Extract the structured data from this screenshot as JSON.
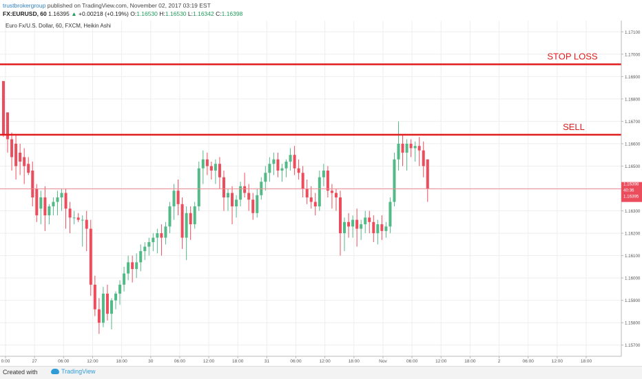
{
  "header": {
    "author": "trustbrokergroup",
    "published": "published on TradingView.com, November 02, 2017 03:19 EST",
    "symbol": "FX:EURUSD, 60",
    "last": "1.16395",
    "change": "+0.00218 (+0.19%)",
    "o_label": "O:",
    "o_value": "1.16530",
    "h_label": "H:",
    "h_value": "1.16530",
    "l_label": "L:",
    "l_value": "1.16342",
    "c_label": "C:",
    "c_value": "1.16398"
  },
  "footer": {
    "created_with": "Created with",
    "brand": "TradingView"
  },
  "chart_data": {
    "type": "candlestick",
    "title": "Euro Fx/U.S. Dollar, 60, FXCM, Heikin Ashi",
    "ylim": [
      1.1565,
      1.1715
    ],
    "y_ticks": [
      "1.17100",
      "1.17000",
      "1.16900",
      "1.16800",
      "1.16700",
      "1.16600",
      "1.16500",
      "1.16400",
      "1.16300",
      "1.16200",
      "1.16100",
      "1.16000",
      "1.15900",
      "1.15800",
      "1.15700"
    ],
    "x_ticks": [
      "0:00",
      "27",
      "06:00",
      "12:00",
      "18:00",
      "30",
      "06:00",
      "12:00",
      "18:00",
      "31",
      "06:00",
      "12:00",
      "18:00",
      "Nov",
      "06:00",
      "12:00",
      "18:00",
      "2",
      "06:00",
      "12:00",
      "18:00"
    ],
    "price_labels": {
      "last": "1.16398",
      "countdown": "40:36",
      "bid": "1.16395"
    },
    "horizontal_lines": [
      {
        "label": "STOP LOSS",
        "value": 1.16955
      },
      {
        "label": "SELL",
        "value": 1.1664
      }
    ],
    "colors": {
      "up": "#53b987",
      "down": "#eb4d5c",
      "level_line": "#e01b1b",
      "price_line": "#f08a93"
    },
    "candles": [
      [
        1.1688,
        1.1688,
        1.1663,
        1.1664
      ],
      [
        1.1674,
        1.1674,
        1.1656,
        1.1662
      ],
      [
        1.1662,
        1.1665,
        1.1648,
        1.1654
      ],
      [
        1.166,
        1.1664,
        1.1644,
        1.165
      ],
      [
        1.1656,
        1.166,
        1.1646,
        1.1652
      ],
      [
        1.1654,
        1.1658,
        1.1642,
        1.165
      ],
      [
        1.1651,
        1.1654,
        1.1646,
        1.1647
      ],
      [
        1.1648,
        1.1652,
        1.1632,
        1.1636
      ],
      [
        1.164,
        1.1642,
        1.1625,
        1.1628
      ],
      [
        1.1631,
        1.1639,
        1.1624,
        1.1636
      ],
      [
        1.1636,
        1.1641,
        1.1621,
        1.1628
      ],
      [
        1.1628,
        1.1633,
        1.1624,
        1.1632
      ],
      [
        1.1632,
        1.1636,
        1.1628,
        1.1634
      ],
      [
        1.1634,
        1.1639,
        1.1628,
        1.1636
      ],
      [
        1.1636,
        1.164,
        1.163,
        1.1638
      ],
      [
        1.1638,
        1.164,
        1.1622,
        1.1631
      ],
      [
        1.1631,
        1.1634,
        1.162,
        1.1627
      ],
      [
        1.1627,
        1.163,
        1.1624,
        1.1627
      ],
      [
        1.1627,
        1.1629,
        1.1625,
        1.1626
      ],
      [
        1.1626,
        1.1628,
        1.1614,
        1.1626
      ],
      [
        1.1626,
        1.163,
        1.1612,
        1.1622
      ],
      [
        1.1622,
        1.1626,
        1.1592,
        1.1597
      ],
      [
        1.1597,
        1.1601,
        1.1583,
        1.1586
      ],
      [
        1.1586,
        1.1591,
        1.1575,
        1.158
      ],
      [
        1.158,
        1.1596,
        1.1578,
        1.1593
      ],
      [
        1.1593,
        1.1597,
        1.1581,
        1.1584
      ],
      [
        1.1584,
        1.1591,
        1.1577,
        1.159
      ],
      [
        1.159,
        1.1594,
        1.1586,
        1.1593
      ],
      [
        1.1593,
        1.1599,
        1.1588,
        1.1597
      ],
      [
        1.1597,
        1.1605,
        1.1594,
        1.1602
      ],
      [
        1.1602,
        1.161,
        1.1599,
        1.1607
      ],
      [
        1.1607,
        1.161,
        1.1598,
        1.1604
      ],
      [
        1.1604,
        1.1611,
        1.16,
        1.1607
      ],
      [
        1.1607,
        1.1615,
        1.1603,
        1.1612
      ],
      [
        1.1612,
        1.1616,
        1.1608,
        1.1614
      ],
      [
        1.1614,
        1.1618,
        1.161,
        1.1616
      ],
      [
        1.1616,
        1.162,
        1.1612,
        1.1618
      ],
      [
        1.1618,
        1.1622,
        1.1611,
        1.162
      ],
      [
        1.162,
        1.1624,
        1.161,
        1.1618
      ],
      [
        1.1618,
        1.1625,
        1.1615,
        1.1623
      ],
      [
        1.1623,
        1.1634,
        1.162,
        1.1632
      ],
      [
        1.1632,
        1.1642,
        1.1626,
        1.1639
      ],
      [
        1.1639,
        1.1644,
        1.1628,
        1.1633
      ],
      [
        1.1633,
        1.1636,
        1.1613,
        1.1618
      ],
      [
        1.1618,
        1.1632,
        1.1608,
        1.1629
      ],
      [
        1.1629,
        1.1632,
        1.1617,
        1.1624
      ],
      [
        1.1624,
        1.1634,
        1.1622,
        1.1632
      ],
      [
        1.1632,
        1.1652,
        1.163,
        1.1649
      ],
      [
        1.1649,
        1.1657,
        1.1642,
        1.1653
      ],
      [
        1.1653,
        1.1656,
        1.1646,
        1.165
      ],
      [
        1.165,
        1.1652,
        1.1644,
        1.1648
      ],
      [
        1.1648,
        1.1653,
        1.1642,
        1.1651
      ],
      [
        1.1651,
        1.1654,
        1.164,
        1.1645
      ],
      [
        1.1645,
        1.1648,
        1.163,
        1.1636
      ],
      [
        1.1636,
        1.164,
        1.163,
        1.1638
      ],
      [
        1.1638,
        1.1641,
        1.1624,
        1.1632
      ],
      [
        1.1632,
        1.1637,
        1.1627,
        1.1635
      ],
      [
        1.1635,
        1.1643,
        1.1632,
        1.1641
      ],
      [
        1.1641,
        1.1647,
        1.1636,
        1.1638
      ],
      [
        1.1638,
        1.1642,
        1.163,
        1.1635
      ],
      [
        1.1635,
        1.1638,
        1.1626,
        1.1629
      ],
      [
        1.1629,
        1.164,
        1.1627,
        1.1637
      ],
      [
        1.1637,
        1.1645,
        1.1635,
        1.1643
      ],
      [
        1.1643,
        1.165,
        1.1639,
        1.1647
      ],
      [
        1.1647,
        1.1654,
        1.1643,
        1.1651
      ],
      [
        1.1651,
        1.1656,
        1.1646,
        1.1653
      ],
      [
        1.1653,
        1.1656,
        1.1645,
        1.1648
      ],
      [
        1.1648,
        1.1651,
        1.1643,
        1.1649
      ],
      [
        1.1649,
        1.1653,
        1.1645,
        1.1652
      ],
      [
        1.1652,
        1.1658,
        1.1648,
        1.1655
      ],
      [
        1.1655,
        1.1659,
        1.1646,
        1.1649
      ],
      [
        1.1649,
        1.1653,
        1.1644,
        1.1647
      ],
      [
        1.1647,
        1.165,
        1.1636,
        1.164
      ],
      [
        1.164,
        1.1644,
        1.1633,
        1.1636
      ],
      [
        1.1636,
        1.1641,
        1.1631,
        1.1634
      ],
      [
        1.1634,
        1.1638,
        1.1628,
        1.1632
      ],
      [
        1.1632,
        1.1648,
        1.163,
        1.1645
      ],
      [
        1.1645,
        1.1651,
        1.1641,
        1.1648
      ],
      [
        1.1648,
        1.165,
        1.1636,
        1.1639
      ],
      [
        1.1639,
        1.1642,
        1.1631,
        1.1638
      ],
      [
        1.1638,
        1.164,
        1.163,
        1.1636
      ],
      [
        1.1636,
        1.1639,
        1.161,
        1.162
      ],
      [
        1.162,
        1.1627,
        1.1612,
        1.1625
      ],
      [
        1.1625,
        1.1629,
        1.1618,
        1.1623
      ],
      [
        1.1623,
        1.1628,
        1.1618,
        1.1626
      ],
      [
        1.1626,
        1.1631,
        1.1614,
        1.1622
      ],
      [
        1.1622,
        1.1626,
        1.1617,
        1.1624
      ],
      [
        1.1624,
        1.163,
        1.162,
        1.1627
      ],
      [
        1.1627,
        1.163,
        1.162,
        1.1625
      ],
      [
        1.1625,
        1.1628,
        1.1616,
        1.162
      ],
      [
        1.162,
        1.1626,
        1.1615,
        1.1624
      ],
      [
        1.1624,
        1.1628,
        1.1617,
        1.1621
      ],
      [
        1.1621,
        1.1625,
        1.1618,
        1.1623
      ],
      [
        1.1623,
        1.1636,
        1.162,
        1.1634
      ],
      [
        1.1634,
        1.1656,
        1.1632,
        1.1653
      ],
      [
        1.1653,
        1.167,
        1.1648,
        1.166
      ],
      [
        1.166,
        1.1664,
        1.165,
        1.1656
      ],
      [
        1.1656,
        1.1662,
        1.1648,
        1.166
      ],
      [
        1.166,
        1.1662,
        1.1654,
        1.1658
      ],
      [
        1.1658,
        1.1661,
        1.1652,
        1.1659
      ],
      [
        1.1659,
        1.1663,
        1.165,
        1.1657
      ],
      [
        1.1657,
        1.1661,
        1.1645,
        1.165
      ],
      [
        1.1653,
        1.1653,
        1.1634,
        1.164
      ]
    ]
  }
}
